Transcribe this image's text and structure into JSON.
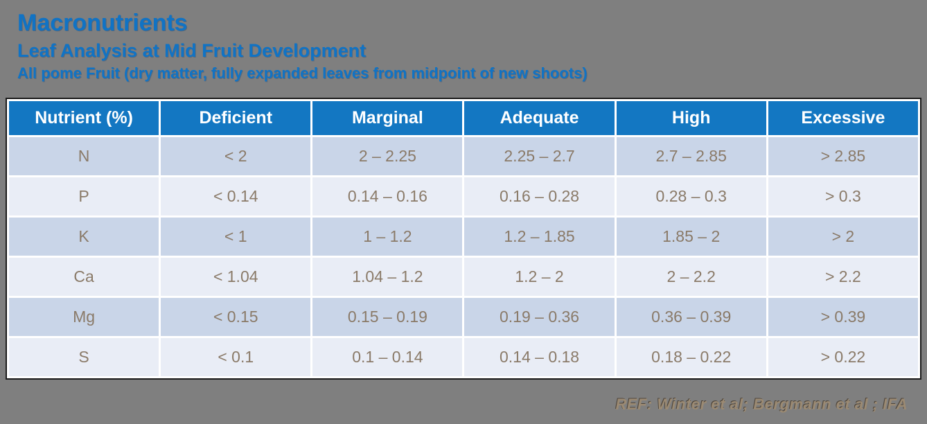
{
  "slide": {
    "title": "Macronutrients",
    "subtitle": "Leaf Analysis at Mid Fruit Development",
    "note": "All pome Fruit (dry matter, fully expanded leaves from midpoint of new shoots)",
    "reference": "REF: Winter et al; Bergmann et al ; IFA"
  },
  "colors": {
    "background": "#7F7F7F",
    "title_blue": "#1073C5",
    "table_header_bg": "#1377C2",
    "table_header_text": "#FFFFFF",
    "row_dark": "#C9D5E8",
    "row_light": "#E9EDF6",
    "cell_text": "#8A7A68",
    "reference_text": "#9B8A73",
    "table_border": "#1A1A1A"
  },
  "chart_data": {
    "type": "table",
    "title": "Macronutrients — Leaf Analysis at Mid Fruit Development",
    "columns": [
      "Nutrient (%)",
      "Deficient",
      "Marginal",
      "Adequate",
      "High",
      "Excessive"
    ],
    "rows": [
      [
        "N",
        "< 2",
        "2 – 2.25",
        "2.25 – 2.7",
        "2.7 – 2.85",
        "> 2.85"
      ],
      [
        "P",
        "< 0.14",
        "0.14 – 0.16",
        "0.16 – 0.28",
        "0.28 – 0.3",
        "> 0.3"
      ],
      [
        "K",
        "< 1",
        "1 – 1.2",
        "1.2 – 1.85",
        "1.85 – 2",
        "> 2"
      ],
      [
        "Ca",
        "< 1.04",
        "1.04 – 1.2",
        "1.2 – 2",
        "2 – 2.2",
        "> 2.2"
      ],
      [
        "Mg",
        "< 0.15",
        "0.15 – 0.19",
        "0.19 – 0.36",
        "0.36 – 0.39",
        "> 0.39"
      ],
      [
        "S",
        "< 0.1",
        "0.1 – 0.14",
        "0.14 – 0.18",
        "0.18 – 0.22",
        "> 0.22"
      ]
    ]
  }
}
